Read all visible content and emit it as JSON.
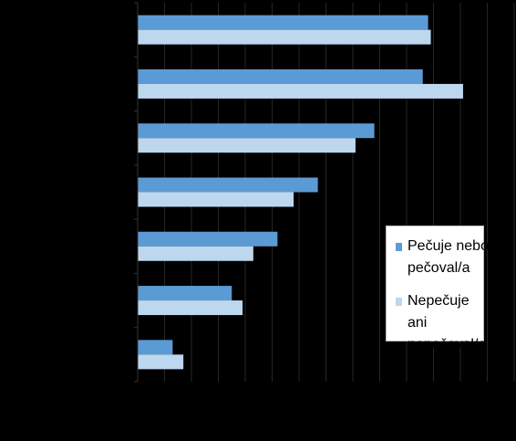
{
  "chart_data": {
    "type": "bar",
    "orientation": "horizontal",
    "categories": [
      "",
      "",
      "",
      "",
      "",
      "",
      ""
    ],
    "series": [
      {
        "name": "Pečuje nebo pečoval/a",
        "color": "#5B9BD5",
        "values": [
          54.0,
          53.0,
          44.0,
          33.5,
          26.0,
          17.5,
          6.5
        ]
      },
      {
        "name": "Nepečuje ani nepečoval/a",
        "color": "#BDD7EE",
        "values": [
          54.5,
          60.5,
          40.5,
          29.0,
          21.5,
          19.5,
          8.5
        ]
      }
    ],
    "xlim": [
      0,
      70
    ],
    "x_gridlines": [
      0,
      5,
      10,
      15,
      20,
      25,
      30,
      35,
      40,
      45,
      50,
      55,
      60,
      65,
      70
    ],
    "grid": true,
    "legend_placement": "bottom-right",
    "background": "#000000",
    "gridline_color": "#262626"
  },
  "legend": {
    "items": [
      {
        "label": "Pečuje nebo pečoval/a",
        "lines": [
          "Pečuje nebo",
          "pečoval/a"
        ],
        "color": "#5B9BD5"
      },
      {
        "label": "Nepečuje ani nepečoval/a",
        "lines": [
          "Nepečuje ani",
          "nepečoval/a"
        ],
        "color": "#BDD7EE"
      }
    ]
  }
}
